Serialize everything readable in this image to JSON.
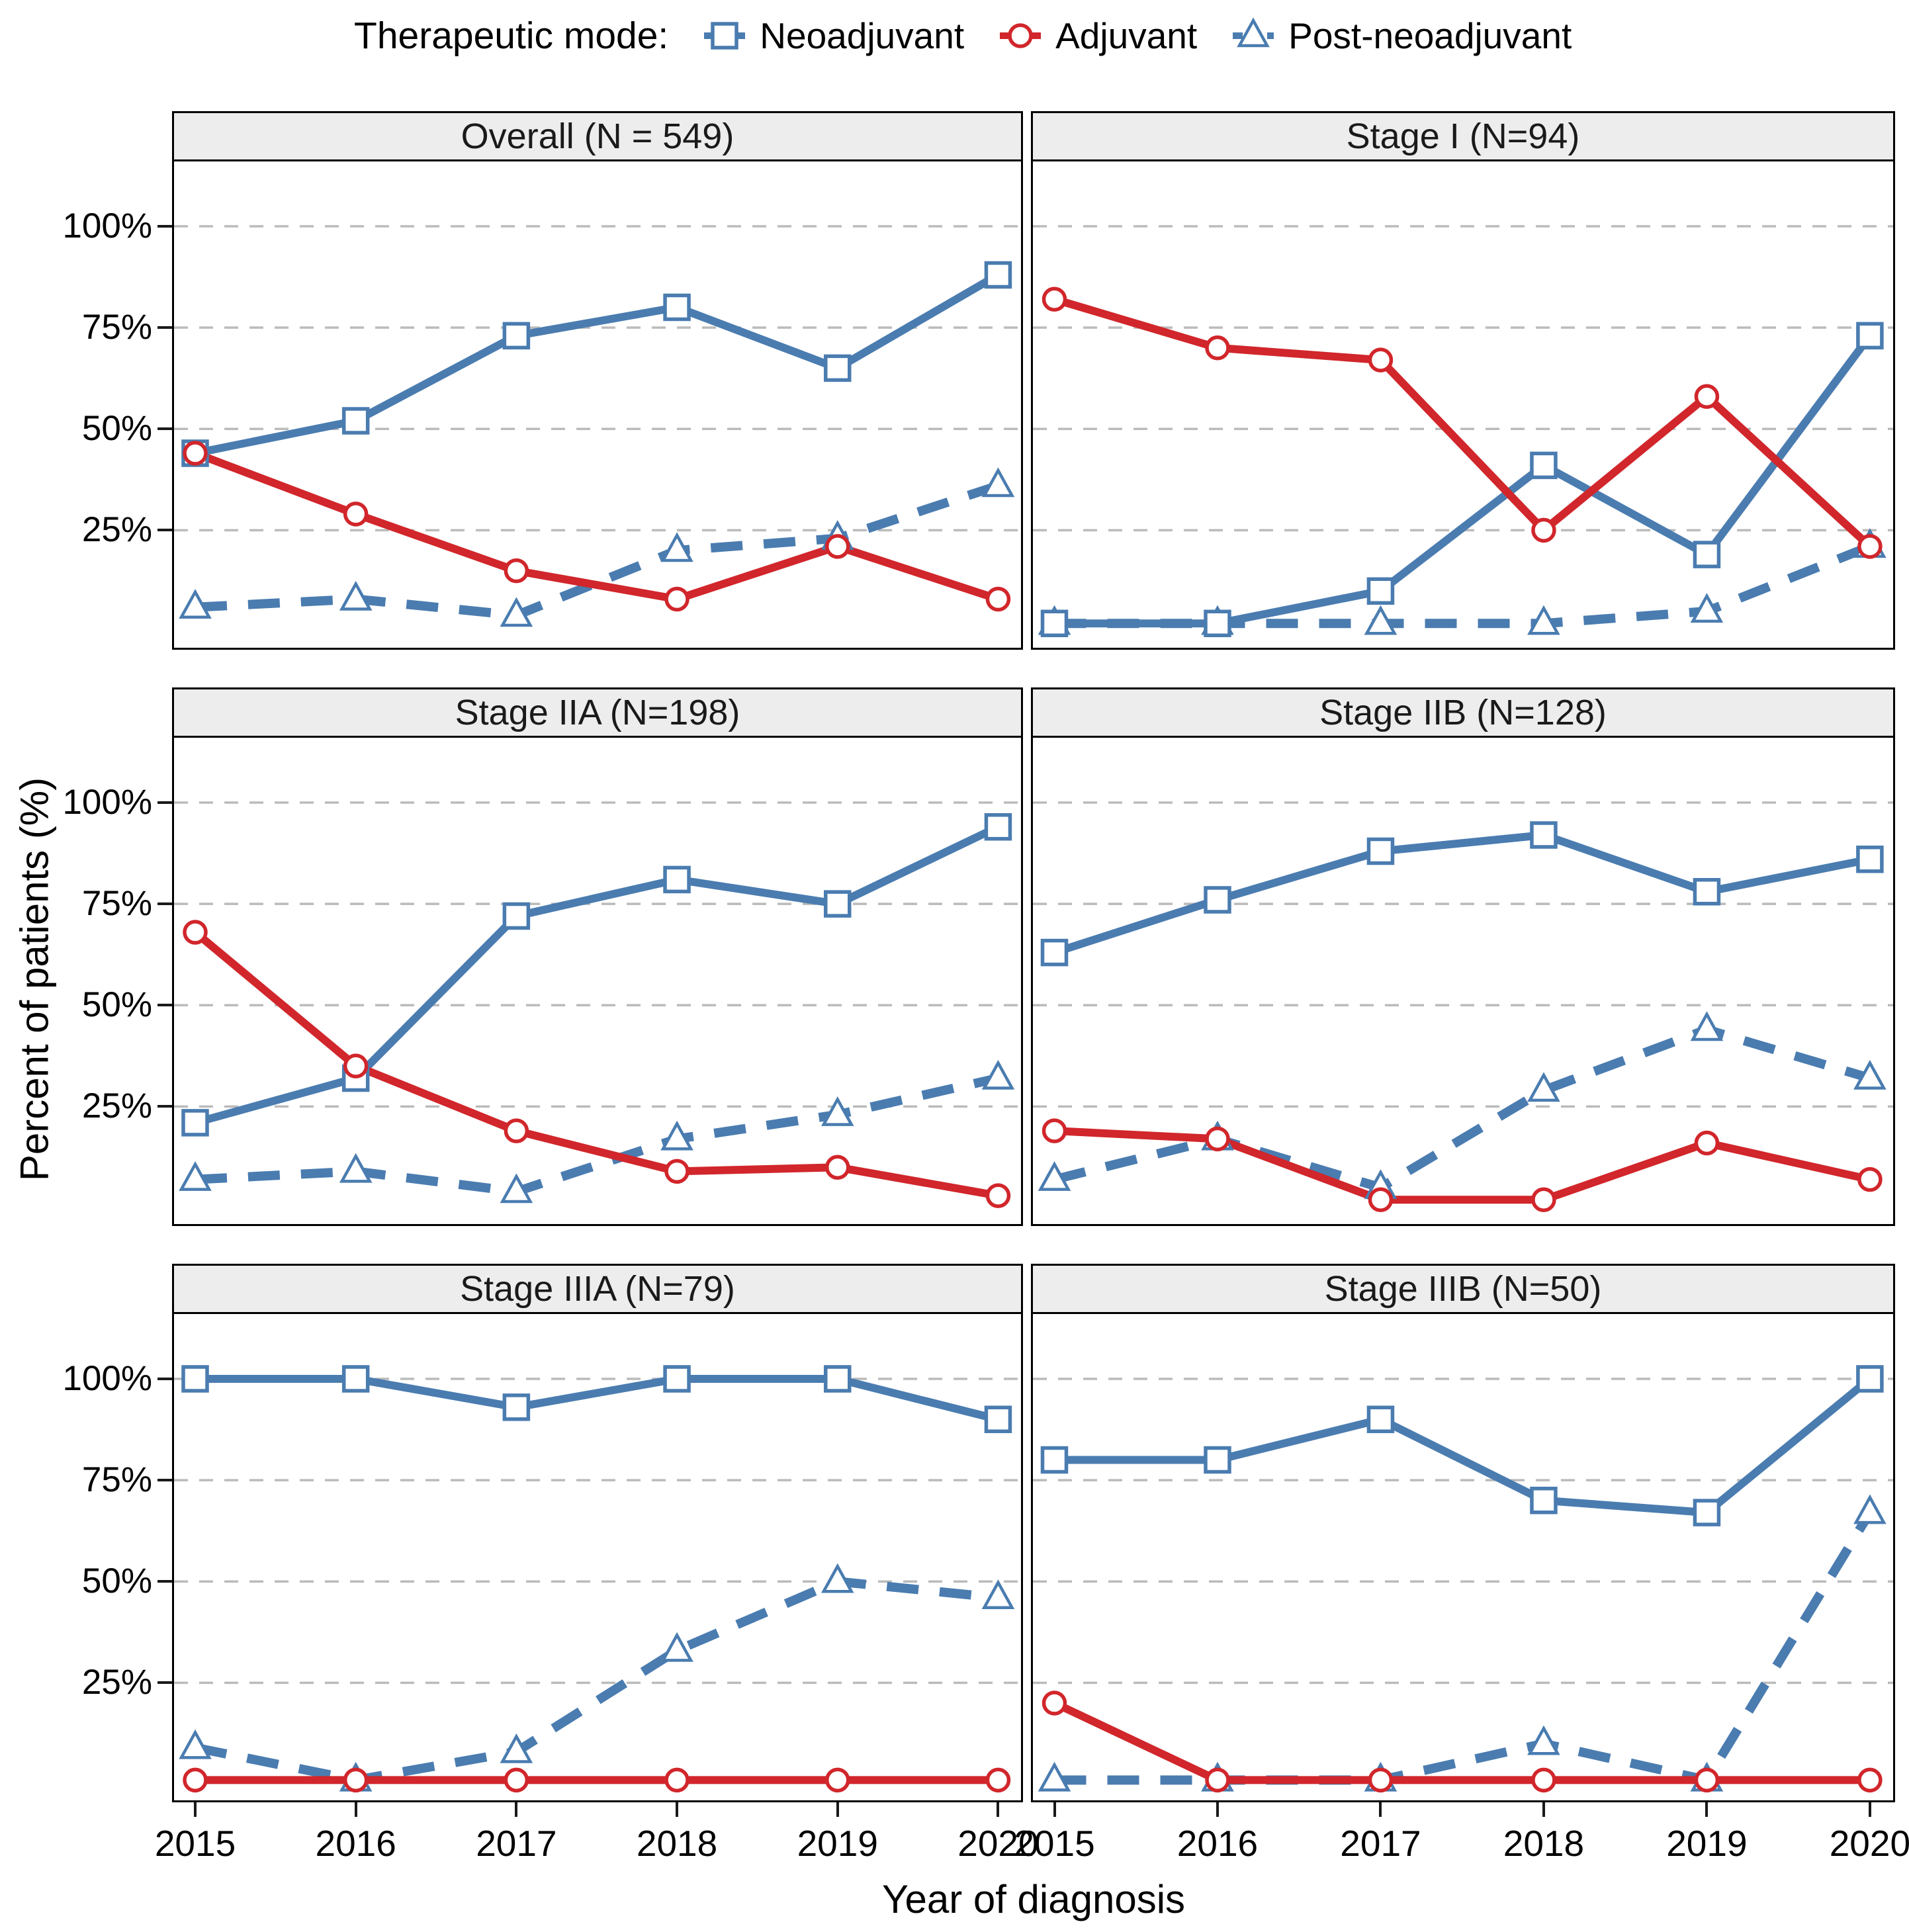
{
  "legend": {
    "title": "Therapeutic mode:",
    "items": [
      {
        "label": "Neoadjuvant",
        "marker": "square",
        "color": "#4A7CB0",
        "line": "solid"
      },
      {
        "label": "Adjuvant",
        "marker": "circle",
        "color": "#D1262B",
        "line": "solid"
      },
      {
        "label": "Post-neoadjuvant",
        "marker": "triangle",
        "color": "#4A7CB0",
        "line": "dashed"
      }
    ]
  },
  "axes": {
    "y_title": "Percent of patients (%)",
    "x_title": "Year of diagnosis",
    "y_ticks": [
      "100%",
      "75%",
      "50%",
      "25%"
    ],
    "x_ticks": [
      "2015",
      "2016",
      "2017",
      "2018",
      "2019",
      "2020"
    ]
  },
  "colors": {
    "blue": "#4A7CB0",
    "red": "#D1262B",
    "grid": "#BBBBBB",
    "header_bg": "#EDEDED",
    "border": "#000000"
  },
  "chart_data": [
    {
      "type": "line",
      "title": "Overall (N = 549)",
      "x": [
        2015,
        2016,
        2017,
        2018,
        2019,
        2020
      ],
      "ylim": [
        0,
        100
      ],
      "y_breaks": [
        25,
        50,
        75,
        100
      ],
      "grid": "dashed-horizontal",
      "legend_position": "top",
      "series": [
        {
          "name": "Neoadjuvant",
          "values": [
            44,
            52,
            73,
            80,
            65,
            88
          ]
        },
        {
          "name": "Adjuvant",
          "values": [
            44,
            29,
            15,
            8,
            21,
            8
          ]
        },
        {
          "name": "Post-neoadjuvant",
          "values": [
            6,
            8,
            4,
            20,
            23,
            36
          ]
        }
      ]
    },
    {
      "type": "line",
      "title": "Stage I (N=94)",
      "x": [
        2015,
        2016,
        2017,
        2018,
        2019,
        2020
      ],
      "ylim": [
        0,
        100
      ],
      "y_breaks": [
        25,
        50,
        75,
        100
      ],
      "grid": "dashed-horizontal",
      "legend_position": "top",
      "series": [
        {
          "name": "Neoadjuvant",
          "values": [
            2,
            2,
            10,
            41,
            19,
            73
          ]
        },
        {
          "name": "Adjuvant",
          "values": [
            82,
            70,
            67,
            25,
            58,
            21
          ]
        },
        {
          "name": "Post-neoadjuvant",
          "values": [
            2,
            2,
            2,
            2,
            5,
            21
          ]
        }
      ]
    },
    {
      "type": "line",
      "title": "Stage IIA (N=198)",
      "x": [
        2015,
        2016,
        2017,
        2018,
        2019,
        2020
      ],
      "ylim": [
        0,
        100
      ],
      "y_breaks": [
        25,
        50,
        75,
        100
      ],
      "grid": "dashed-horizontal",
      "legend_position": "top",
      "series": [
        {
          "name": "Neoadjuvant",
          "values": [
            21,
            32,
            72,
            81,
            75,
            94
          ]
        },
        {
          "name": "Adjuvant",
          "values": [
            68,
            35,
            19,
            9,
            10,
            3
          ]
        },
        {
          "name": "Post-neoadjuvant",
          "values": [
            7,
            9,
            4,
            17,
            23,
            32
          ]
        }
      ]
    },
    {
      "type": "line",
      "title": "Stage IIB (N=128)",
      "x": [
        2015,
        2016,
        2017,
        2018,
        2019,
        2020
      ],
      "ylim": [
        0,
        100
      ],
      "y_breaks": [
        25,
        50,
        75,
        100
      ],
      "grid": "dashed-horizontal",
      "legend_position": "top",
      "series": [
        {
          "name": "Neoadjuvant",
          "values": [
            63,
            76,
            88,
            92,
            78,
            86
          ]
        },
        {
          "name": "Adjuvant",
          "values": [
            19,
            17,
            2,
            2,
            16,
            7
          ]
        },
        {
          "name": "Post-neoadjuvant",
          "values": [
            7,
            17,
            5,
            29,
            44,
            32
          ]
        }
      ]
    },
    {
      "type": "line",
      "title": "Stage IIIA (N=79)",
      "x": [
        2015,
        2016,
        2017,
        2018,
        2019,
        2020
      ],
      "ylim": [
        0,
        100
      ],
      "y_breaks": [
        25,
        50,
        75,
        100
      ],
      "grid": "dashed-horizontal",
      "legend_position": "top",
      "series": [
        {
          "name": "Neoadjuvant",
          "values": [
            100,
            100,
            93,
            100,
            100,
            90
          ]
        },
        {
          "name": "Adjuvant",
          "values": [
            1,
            1,
            1,
            1,
            1,
            1
          ]
        },
        {
          "name": "Post-neoadjuvant",
          "values": [
            9,
            1,
            8,
            33,
            50,
            46
          ]
        }
      ]
    },
    {
      "type": "line",
      "title": "Stage IIIB (N=50)",
      "x": [
        2015,
        2016,
        2017,
        2018,
        2019,
        2020
      ],
      "ylim": [
        0,
        100
      ],
      "y_breaks": [
        25,
        50,
        75,
        100
      ],
      "grid": "dashed-horizontal",
      "legend_position": "top",
      "series": [
        {
          "name": "Neoadjuvant",
          "values": [
            80,
            80,
            90,
            70,
            67,
            100
          ]
        },
        {
          "name": "Adjuvant",
          "values": [
            20,
            1,
            1,
            1,
            1,
            1
          ]
        },
        {
          "name": "Post-neoadjuvant",
          "values": [
            1,
            1,
            1,
            10,
            1,
            67
          ]
        }
      ]
    }
  ]
}
